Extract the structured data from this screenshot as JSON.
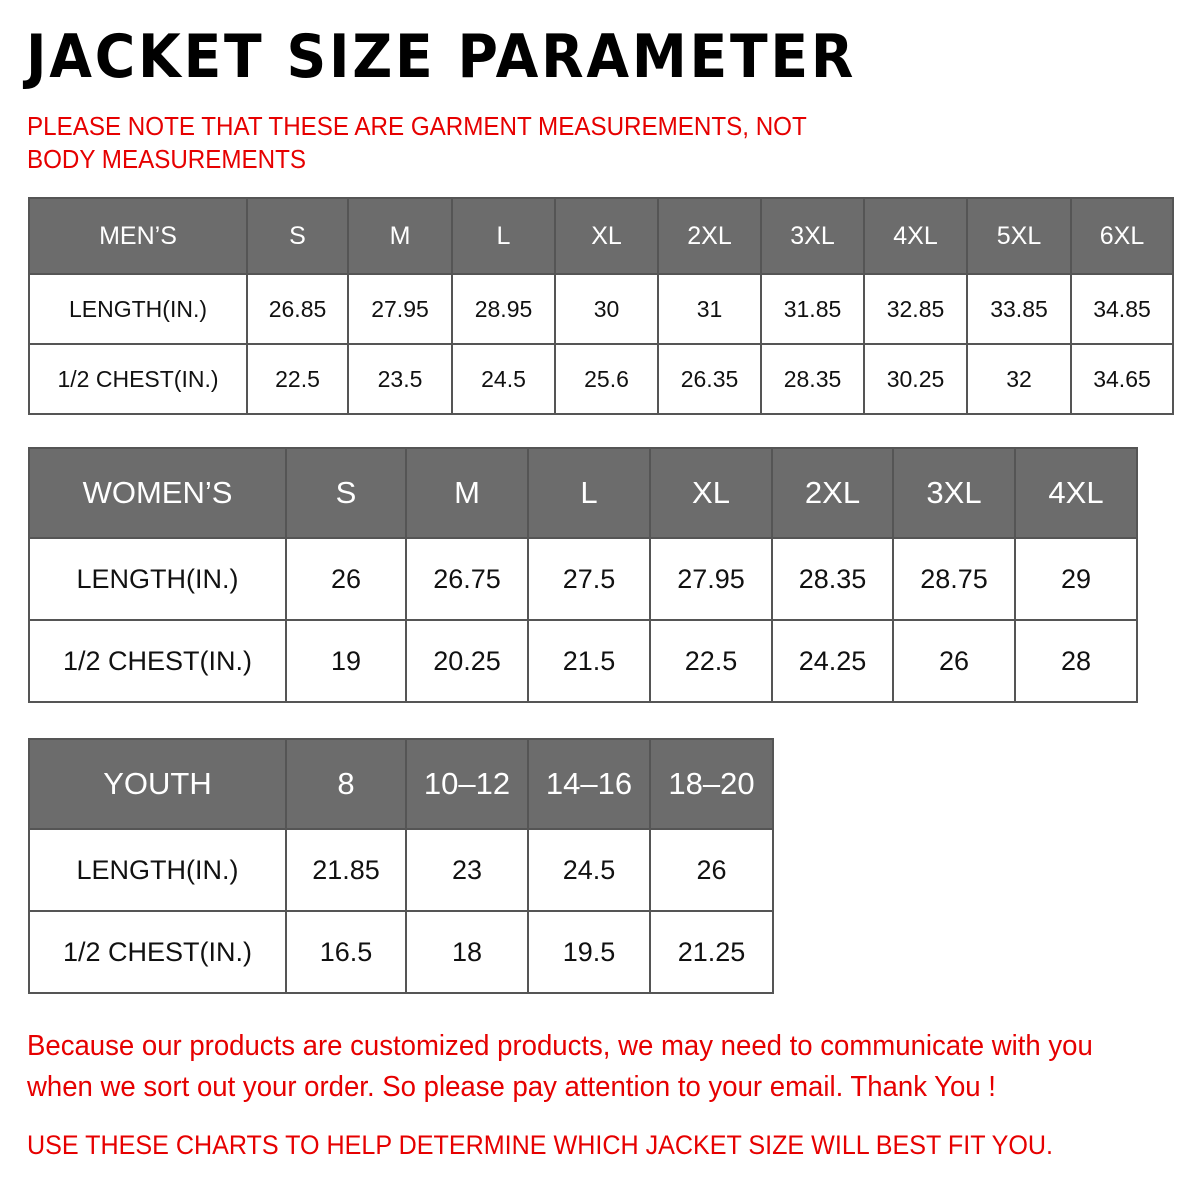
{
  "title": "JACKET SIZE PARAMETER",
  "note": "PLEASE NOTE THAT THESE ARE GARMENT MEASUREMENTS, NOT BODY MEASUREMENTS",
  "colors": {
    "header_bg": "#6c6c6c",
    "accent_red": "#e60000"
  },
  "tables": {
    "men": {
      "header": [
        "MEN’S",
        "S",
        "M",
        "L",
        "XL",
        "2XL",
        "3XL",
        "4XL",
        "5XL",
        "6XL"
      ],
      "rows": [
        [
          "LENGTH(IN.)",
          "26.85",
          "27.95",
          "28.95",
          "30",
          "31",
          "31.85",
          "32.85",
          "33.85",
          "34.85"
        ],
        [
          "1/2 CHEST(IN.)",
          "22.5",
          "23.5",
          "24.5",
          "25.6",
          "26.35",
          "28.35",
          "30.25",
          "32",
          "34.65"
        ]
      ]
    },
    "women": {
      "header": [
        "WOMEN’S",
        "S",
        "M",
        "L",
        "XL",
        "2XL",
        "3XL",
        "4XL"
      ],
      "rows": [
        [
          "LENGTH(IN.)",
          "26",
          "26.75",
          "27.5",
          "27.95",
          "28.35",
          "28.75",
          "29"
        ],
        [
          "1/2 CHEST(IN.)",
          "19",
          "20.25",
          "21.5",
          "22.5",
          "24.25",
          "26",
          "28"
        ]
      ]
    },
    "youth": {
      "header": [
        "YOUTH",
        "8",
        "10–12",
        "14–16",
        "18–20"
      ],
      "rows": [
        [
          "LENGTH(IN.)",
          "21.85",
          "23",
          "24.5",
          "26"
        ],
        [
          "1/2 CHEST(IN.)",
          "16.5",
          "18",
          "19.5",
          "21.25"
        ]
      ]
    }
  },
  "footer": {
    "message": "Because our products are customized products, we may need to communicate with you when we sort out your order. So please pay attention to your email. Thank You !",
    "advice": "USE THESE CHARTS TO HELP DETERMINE WHICH JACKET SIZE WILL BEST FIT YOU."
  }
}
